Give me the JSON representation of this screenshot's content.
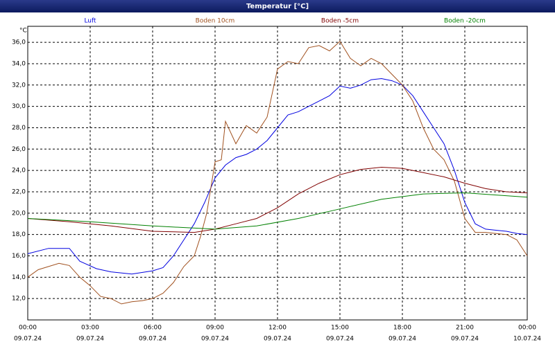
{
  "chart_data": {
    "type": "line",
    "title": "Temperatur [°C]",
    "y_unit": "°C",
    "xlim": [
      0,
      24
    ],
    "ylim": [
      10,
      37.5
    ],
    "xticks": [
      {
        "value": 0,
        "label": "00:00",
        "date": "09.07.24"
      },
      {
        "value": 3,
        "label": "03:00",
        "date": "09.07.24"
      },
      {
        "value": 6,
        "label": "06:00",
        "date": "09.07.24"
      },
      {
        "value": 9,
        "label": "09:00",
        "date": "09.07.24"
      },
      {
        "value": 12,
        "label": "12:00",
        "date": "09.07.24"
      },
      {
        "value": 15,
        "label": "15:00",
        "date": "09.07.24"
      },
      {
        "value": 18,
        "label": "18:00",
        "date": "09.07.24"
      },
      {
        "value": 21,
        "label": "21:00",
        "date": "09.07.24"
      },
      {
        "value": 24,
        "label": "00:00",
        "date": "10.07.24"
      }
    ],
    "yticks": [
      {
        "value": 12,
        "label": "12,0"
      },
      {
        "value": 14,
        "label": "14,0"
      },
      {
        "value": 16,
        "label": "16,0"
      },
      {
        "value": 18,
        "label": "18,0"
      },
      {
        "value": 20,
        "label": "20,0"
      },
      {
        "value": 22,
        "label": "22,0"
      },
      {
        "value": 24,
        "label": "24,0"
      },
      {
        "value": 26,
        "label": "26,0"
      },
      {
        "value": 28,
        "label": "28,0"
      },
      {
        "value": 30,
        "label": "30,0"
      },
      {
        "value": 32,
        "label": "32,0"
      },
      {
        "value": 34,
        "label": "34,0"
      },
      {
        "value": 36,
        "label": "36,0"
      }
    ],
    "grid": true,
    "series": [
      {
        "name": "Luft",
        "color": "#0000e0",
        "x": [
          0,
          1,
          2,
          2.5,
          3.3,
          4,
          5,
          6,
          6.5,
          7,
          7.5,
          8,
          8.5,
          9,
          9.5,
          10,
          10.5,
          11,
          11.5,
          12,
          12.5,
          13,
          13.5,
          14,
          14.5,
          15,
          15.5,
          16,
          16.5,
          17,
          17.5,
          18,
          18.5,
          19,
          19.5,
          20,
          20.5,
          21,
          21.5,
          22,
          22.5,
          23,
          23.5,
          24
        ],
        "values": [
          16.2,
          16.7,
          16.7,
          15.5,
          14.8,
          14.5,
          14.3,
          14.6,
          14.9,
          16,
          17.5,
          19,
          21,
          23.3,
          24.5,
          25.2,
          25.5,
          26,
          26.8,
          28,
          29.2,
          29.5,
          30,
          30.5,
          31,
          31.9,
          31.7,
          32,
          32.5,
          32.6,
          32.4,
          32,
          31,
          29.5,
          28,
          26.5,
          24,
          21,
          19,
          18.5,
          18.4,
          18.3,
          18.1,
          18
        ]
      },
      {
        "name": "Boden 10cm",
        "color": "#a0501e",
        "x": [
          0,
          0.5,
          1,
          1.5,
          2,
          2.5,
          3,
          3.5,
          4,
          4.5,
          5,
          5.5,
          6,
          6.5,
          7,
          7.5,
          8,
          8.3,
          8.6,
          9,
          9.3,
          9.5,
          10,
          10.5,
          11,
          11.5,
          12,
          12.5,
          13,
          13.5,
          14,
          14.5,
          15,
          15.5,
          16,
          16.5,
          17,
          17.5,
          18,
          18.5,
          19,
          19.5,
          20,
          20.5,
          21,
          21.5,
          22,
          23,
          23.5,
          24
        ],
        "values": [
          14,
          14.7,
          15,
          15.3,
          15.1,
          14,
          13.2,
          12.2,
          12,
          11.5,
          11.7,
          11.8,
          12,
          12.5,
          13.5,
          15,
          16,
          17.8,
          20,
          24.8,
          25,
          28.6,
          26.5,
          28.2,
          27.5,
          29,
          33.5,
          34.2,
          34,
          35.5,
          35.7,
          35.2,
          36.1,
          34.5,
          33.8,
          34.5,
          34,
          33,
          32,
          30.5,
          28,
          26,
          25,
          23,
          19.5,
          18.2,
          18.2,
          18,
          17.5,
          16
        ]
      },
      {
        "name": "Boden -5cm",
        "color": "#800000",
        "x": [
          0,
          2,
          4,
          6,
          8,
          9,
          10,
          11,
          12,
          13,
          14,
          15,
          16,
          17,
          18,
          19,
          20,
          21,
          22,
          23,
          24
        ],
        "values": [
          19.5,
          19.2,
          18.8,
          18.3,
          18.2,
          18.5,
          19,
          19.5,
          20.5,
          21.8,
          22.8,
          23.6,
          24.1,
          24.3,
          24.2,
          23.8,
          23.4,
          22.8,
          22.3,
          22,
          21.9
        ]
      },
      {
        "name": "Boden -20cm",
        "color": "#008000",
        "x": [
          0,
          3,
          6,
          9,
          11,
          13,
          15,
          17,
          19,
          21,
          24
        ],
        "values": [
          19.5,
          19.2,
          18.8,
          18.5,
          18.8,
          19.5,
          20.4,
          21.3,
          21.8,
          21.9,
          21.5
        ]
      }
    ]
  }
}
